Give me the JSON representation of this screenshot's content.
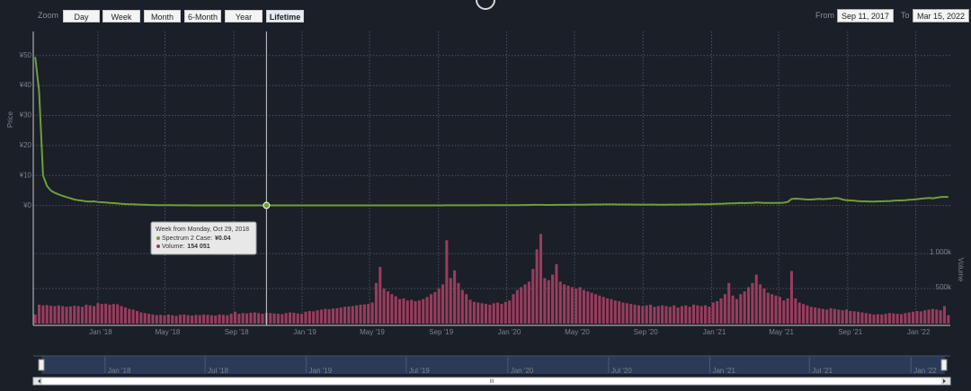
{
  "toolbar": {
    "zoom_label": "Zoom",
    "buttons": [
      "Day",
      "Week",
      "Month",
      "6-Month",
      "Year",
      "Lifetime"
    ],
    "selected": "Lifetime",
    "from_label": "From",
    "from_date": "Sep 11, 2017",
    "to_label": "To",
    "to_date": "Mar 15, 2022"
  },
  "tooltip": {
    "header": "Week from Monday, Oct 29, 2018",
    "rows": [
      {
        "label": "Spectrum 2 Case:",
        "value": "¥0.04"
      },
      {
        "label": "Volume:",
        "value": "154 051"
      }
    ],
    "x": 59
  },
  "navigator": {
    "ticks": [
      {
        "value": 16,
        "label": "Jan '18"
      },
      {
        "value": 41.9,
        "label": "Jul '18"
      },
      {
        "value": 68.1,
        "label": "Jan '19"
      },
      {
        "value": 94,
        "label": "Jul '19"
      },
      {
        "value": 120.3,
        "label": "Jan '20"
      },
      {
        "value": 146.4,
        "label": "Jul '20"
      },
      {
        "value": 172.6,
        "label": "Jan '21"
      },
      {
        "value": 198.4,
        "label": "Jul '21"
      },
      {
        "value": 224.7,
        "label": "Jan '22"
      }
    ],
    "scroll_label": "III"
  },
  "chart_data": {
    "type": "stock",
    "ylabel": "Price",
    "y2label": "Volume",
    "xlim": [
      -0.5,
      233.5
    ],
    "xticks": [
      {
        "value": 16,
        "label": "Jan '18"
      },
      {
        "value": 33.1,
        "label": "May '18"
      },
      {
        "value": 50.7,
        "label": "Sep '18"
      },
      {
        "value": 68.1,
        "label": "Jan '19"
      },
      {
        "value": 85.3,
        "label": "May '19"
      },
      {
        "value": 102.9,
        "label": "Sep '19"
      },
      {
        "value": 120.3,
        "label": "Jan '20"
      },
      {
        "value": 137.6,
        "label": "May '20"
      },
      {
        "value": 155.1,
        "label": "Sep '20"
      },
      {
        "value": 172.6,
        "label": "Jan '21"
      },
      {
        "value": 189.7,
        "label": "May '21"
      },
      {
        "value": 207.3,
        "label": "Sep '21"
      },
      {
        "value": 224.7,
        "label": "Jan '22"
      }
    ],
    "ylim": [
      -1,
      58
    ],
    "yticks": [
      {
        "value": 0,
        "label": "¥0"
      },
      {
        "value": 10,
        "label": "¥10"
      },
      {
        "value": 20,
        "label": "¥20"
      },
      {
        "value": 30,
        "label": "¥30"
      },
      {
        "value": 40,
        "label": "¥40"
      },
      {
        "value": 50,
        "label": "¥50"
      }
    ],
    "y2lim": [
      0,
      1540000
    ],
    "y2ticks": [
      {
        "value": 500000,
        "label": "500k"
      },
      {
        "value": 1000000,
        "label": "1 000k"
      }
    ],
    "grid": true,
    "x": [
      0,
      1,
      2,
      3,
      4,
      5,
      6,
      7,
      8,
      9,
      10,
      11,
      12,
      13,
      14,
      15,
      16,
      17,
      18,
      19,
      20,
      21,
      22,
      23,
      24,
      25,
      26,
      27,
      28,
      29,
      30,
      31,
      32,
      33,
      34,
      35,
      36,
      37,
      38,
      39,
      40,
      41,
      42,
      43,
      44,
      45,
      46,
      47,
      48,
      49,
      50,
      51,
      52,
      53,
      54,
      55,
      56,
      57,
      58,
      59,
      60,
      61,
      62,
      63,
      64,
      65,
      66,
      67,
      68,
      69,
      70,
      71,
      72,
      73,
      74,
      75,
      76,
      77,
      78,
      79,
      80,
      81,
      82,
      83,
      84,
      85,
      86,
      87,
      88,
      89,
      90,
      91,
      92,
      93,
      94,
      95,
      96,
      97,
      98,
      99,
      100,
      101,
      102,
      103,
      104,
      105,
      106,
      107,
      108,
      109,
      110,
      111,
      112,
      113,
      114,
      115,
      116,
      117,
      118,
      119,
      120,
      121,
      122,
      123,
      124,
      125,
      126,
      127,
      128,
      129,
      130,
      131,
      132,
      133,
      134,
      135,
      136,
      137,
      138,
      139,
      140,
      141,
      142,
      143,
      144,
      145,
      146,
      147,
      148,
      149,
      150,
      151,
      152,
      153,
      154,
      155,
      156,
      157,
      158,
      159,
      160,
      161,
      162,
      163,
      164,
      165,
      166,
      167,
      168,
      169,
      170,
      171,
      172,
      173,
      174,
      175,
      176,
      177,
      178,
      179,
      180,
      181,
      182,
      183,
      184,
      185,
      186,
      187,
      188,
      189,
      190,
      191,
      192,
      193,
      194,
      195,
      196,
      197,
      198,
      199,
      200,
      201,
      202,
      203,
      204,
      205,
      206,
      207,
      208,
      209,
      210,
      211,
      212,
      213,
      214,
      215,
      216,
      217,
      218,
      219,
      220,
      221,
      222,
      223,
      224,
      225,
      226,
      227,
      228,
      229,
      230,
      231,
      232,
      233
    ],
    "series": [
      {
        "type": "line",
        "color": "#6e9e3a",
        "values": [
          49.5,
          38,
          10,
          6.5,
          5,
          4.2,
          3.7,
          3.2,
          2.8,
          2.4,
          2.0,
          1.8,
          1.6,
          1.4,
          1.3,
          1.4,
          1.2,
          1.1,
          1.0,
          0.9,
          0.8,
          0.7,
          0.6,
          0.5,
          0.45,
          0.4,
          0.35,
          0.3,
          0.25,
          0.2,
          0.18,
          0.15,
          0.14,
          0.12,
          0.11,
          0.1,
          0.09,
          0.08,
          0.07,
          0.07,
          0.06,
          0.06,
          0.05,
          0.05,
          0.05,
          0.05,
          0.05,
          0.05,
          0.04,
          0.04,
          0.04,
          0.04,
          0.04,
          0.04,
          0.04,
          0.04,
          0.04,
          0.04,
          0.04,
          0.04,
          0.04,
          0.04,
          0.04,
          0.04,
          0.04,
          0.04,
          0.04,
          0.04,
          0.04,
          0.04,
          0.04,
          0.04,
          0.04,
          0.04,
          0.04,
          0.04,
          0.04,
          0.05,
          0.05,
          0.05,
          0.05,
          0.05,
          0.05,
          0.05,
          0.05,
          0.05,
          0.05,
          0.05,
          0.05,
          0.05,
          0.05,
          0.05,
          0.05,
          0.05,
          0.05,
          0.05,
          0.06,
          0.06,
          0.06,
          0.06,
          0.06,
          0.06,
          0.06,
          0.06,
          0.06,
          0.07,
          0.07,
          0.08,
          0.08,
          0.08,
          0.08,
          0.09,
          0.09,
          0.09,
          0.1,
          0.1,
          0.1,
          0.1,
          0.11,
          0.11,
          0.12,
          0.13,
          0.14,
          0.15,
          0.16,
          0.18,
          0.2,
          0.22,
          0.24,
          0.22,
          0.2,
          0.2,
          0.21,
          0.22,
          0.22,
          0.23,
          0.24,
          0.25,
          0.26,
          0.28,
          0.3,
          0.32,
          0.34,
          0.35,
          0.36,
          0.37,
          0.38,
          0.38,
          0.37,
          0.36,
          0.35,
          0.35,
          0.34,
          0.33,
          0.33,
          0.32,
          0.32,
          0.31,
          0.31,
          0.3,
          0.3,
          0.3,
          0.31,
          0.32,
          0.33,
          0.34,
          0.35,
          0.36,
          0.38,
          0.4,
          0.42,
          0.44,
          0.46,
          0.5,
          0.55,
          0.6,
          0.65,
          0.7,
          0.75,
          0.8,
          0.85,
          0.8,
          0.85,
          0.9,
          1.0,
          0.95,
          0.9,
          0.9,
          0.85,
          0.85,
          0.9,
          0.95,
          1.2,
          2.2,
          2.3,
          2.2,
          2.1,
          2.0,
          2.0,
          2.1,
          2.2,
          2.1,
          2.2,
          2.3,
          2.5,
          2.4,
          2.0,
          1.8,
          1.7,
          1.6,
          1.5,
          1.4,
          1.4,
          1.3,
          1.3,
          1.4,
          1.4,
          1.5,
          1.5,
          1.6,
          1.7,
          1.7,
          1.8,
          1.9,
          2.0,
          2.1,
          2.3,
          2.4,
          2.5,
          2.4,
          2.6,
          2.8,
          2.9,
          2.8
        ]
      },
      {
        "type": "bar",
        "axis": "y2",
        "color": "#9b3c5d",
        "values": [
          130000,
          270000,
          260000,
          265000,
          255000,
          250000,
          260000,
          250000,
          240000,
          245000,
          255000,
          250000,
          240000,
          270000,
          260000,
          250000,
          290000,
          280000,
          285000,
          270000,
          280000,
          275000,
          250000,
          230000,
          210000,
          200000,
          180000,
          160000,
          150000,
          140000,
          130000,
          120000,
          125000,
          115000,
          130000,
          120000,
          110000,
          125000,
          130000,
          120000,
          115000,
          125000,
          120000,
          130000,
          125000,
          120000,
          115000,
          130000,
          125000,
          120000,
          140000,
          170000,
          140000,
          150000,
          145000,
          155000,
          160000,
          150000,
          140000,
          154051,
          150000,
          145000,
          140000,
          135000,
          150000,
          160000,
          155000,
          145000,
          140000,
          170000,
          180000,
          175000,
          190000,
          200000,
          210000,
          205000,
          215000,
          220000,
          230000,
          240000,
          245000,
          250000,
          260000,
          270000,
          275000,
          280000,
          300000,
          580000,
          810000,
          500000,
          460000,
          420000,
          390000,
          350000,
          360000,
          330000,
          340000,
          320000,
          330000,
          350000,
          380000,
          420000,
          450000,
          500000,
          560000,
          1190000,
          650000,
          760000,
          580000,
          480000,
          420000,
          340000,
          310000,
          300000,
          290000,
          280000,
          270000,
          290000,
          300000,
          280000,
          310000,
          330000,
          420000,
          480000,
          520000,
          560000,
          600000,
          780000,
          1060000,
          1280000,
          650000,
          620000,
          700000,
          850000,
          600000,
          560000,
          540000,
          520000,
          500000,
          520000,
          480000,
          460000,
          440000,
          420000,
          400000,
          380000,
          360000,
          350000,
          330000,
          320000,
          300000,
          290000,
          280000,
          270000,
          260000,
          250000,
          260000,
          270000,
          240000,
          250000,
          260000,
          250000,
          240000,
          260000,
          230000,
          250000,
          260000,
          240000,
          270000,
          260000,
          250000,
          260000,
          240000,
          300000,
          320000,
          360000,
          420000,
          580000,
          400000,
          350000,
          420000,
          460000,
          520000,
          580000,
          700000,
          560000,
          500000,
          440000,
          420000,
          400000,
          380000,
          330000,
          360000,
          750000,
          360000,
          300000,
          280000,
          260000,
          240000,
          230000,
          220000,
          210000,
          200000,
          220000,
          210000,
          200000,
          190000,
          200000,
          180000,
          175000,
          170000,
          160000,
          150000,
          140000,
          130000,
          135000,
          130000,
          140000,
          150000,
          145000,
          140000,
          135000,
          150000,
          160000,
          170000,
          180000,
          175000,
          190000,
          200000,
          210000,
          200000,
          190000,
          250000,
          120000
        ]
      }
    ]
  }
}
